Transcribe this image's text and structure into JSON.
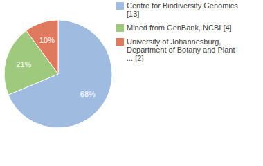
{
  "chart_data": {
    "type": "pie",
    "categories": [
      "Centre for Biodiversity Genomics [13]",
      "Mined from GenBank, NCBI [4]",
      "University of Johannesburg, Department of Botany and Plant ... [2]"
    ],
    "values": [
      68,
      21,
      10
    ],
    "value_labels": [
      "68%",
      "21%",
      "10%"
    ],
    "colors": [
      "#9fbbe0",
      "#9fc97c",
      "#e07a5f"
    ],
    "data_labels": true,
    "legend": "upper right"
  }
}
